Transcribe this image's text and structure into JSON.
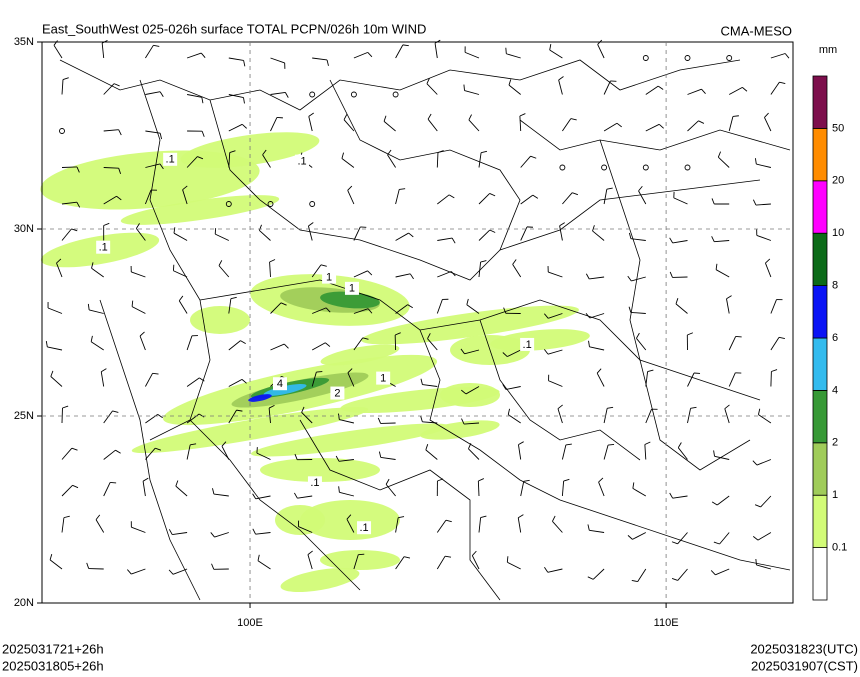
{
  "map": {
    "title": "East_SouthWest 025-026h surface TOTAL PCPN/026h 10m WIND",
    "source": "CMA-MESO",
    "xlim": [
      95,
      113.05
    ],
    "ylim": [
      20,
      35
    ],
    "xticks": [
      {
        "value": 100,
        "label": "100E"
      },
      {
        "value": 110,
        "label": "110E"
      }
    ],
    "yticks": [
      {
        "value": 20,
        "label": "20N"
      },
      {
        "value": 25,
        "label": "25N"
      },
      {
        "value": 30,
        "label": "30N"
      },
      {
        "value": 35,
        "label": "35N"
      }
    ],
    "colorbar": {
      "unit": "mm",
      "levels": [
        0.1,
        1,
        2,
        4,
        6,
        8,
        10,
        20,
        50
      ],
      "colors": [
        "#ffffff",
        "#d2fb77",
        "#a0cc5a",
        "#379936",
        "#33bbee",
        "#0a14f5",
        "#0c6b18",
        "#ff00ff",
        "#ff8c00",
        "#7d0f4c"
      ]
    },
    "contour_labels": [
      {
        "text": ".1",
        "lon": 98.08,
        "lat": 31.85
      },
      {
        "text": ".1",
        "lon": 101.25,
        "lat": 31.8
      },
      {
        "text": "1",
        "lon": 101.9,
        "lat": 28.7
      },
      {
        "text": "1",
        "lon": 102.45,
        "lat": 28.4
      },
      {
        "text": "4",
        "lon": 100.72,
        "lat": 25.85
      },
      {
        "text": "2",
        "lon": 102.1,
        "lat": 25.6
      },
      {
        "text": "1",
        "lon": 103.2,
        "lat": 26.0
      },
      {
        "text": ".1",
        "lon": 106.66,
        "lat": 26.9
      },
      {
        "text": ".1",
        "lon": 96.47,
        "lat": 29.5
      },
      {
        "text": ".1",
        "lon": 101.56,
        "lat": 23.2
      },
      {
        "text": ".1",
        "lon": 102.74,
        "lat": 22.0
      }
    ],
    "footer": {
      "init_utc": "2025031721+26h",
      "init_cst": "2025031805+26h",
      "valid_utc": "2025031823(UTC)",
      "valid_cst": "2025031907(CST)"
    }
  }
}
